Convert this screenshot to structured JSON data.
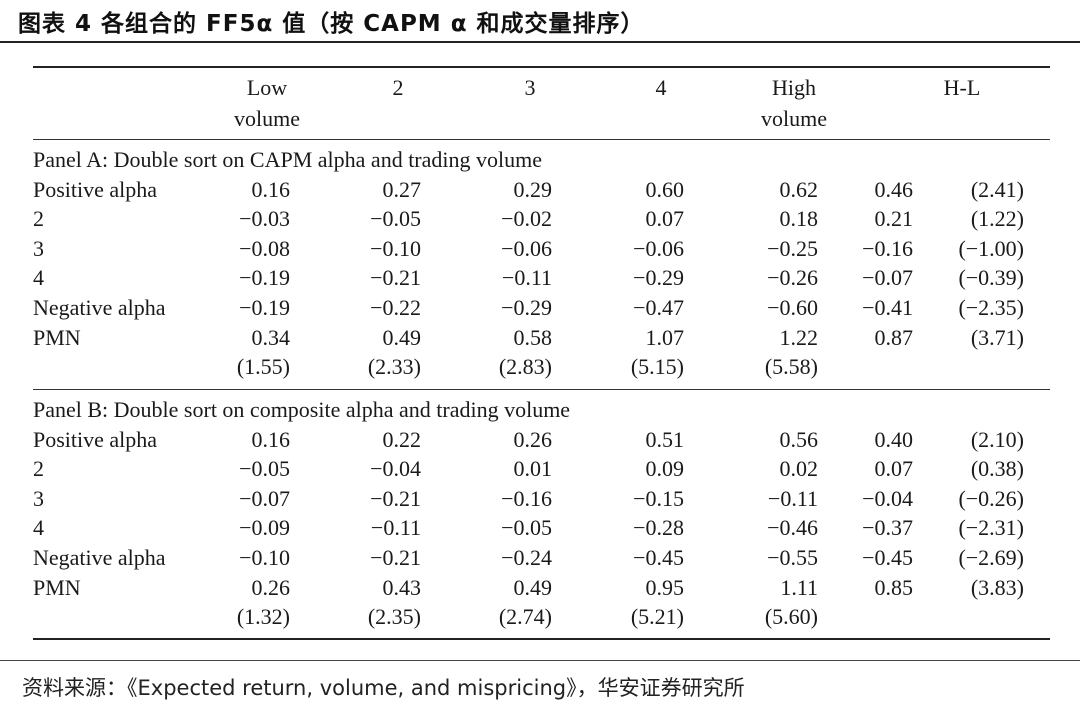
{
  "title": "图表 4 各组合的 FF5α 值（按 CAPM α 和成交量排序）",
  "columns": [
    {
      "line1": "Low",
      "line2": "volume"
    },
    {
      "line1": "2",
      "line2": ""
    },
    {
      "line1": "3",
      "line2": ""
    },
    {
      "line1": "4",
      "line2": ""
    },
    {
      "line1": "High",
      "line2": "volume"
    },
    {
      "line1": "H-L",
      "line2": ""
    }
  ],
  "panels": [
    {
      "label": "Panel A: Double sort on CAPM alpha and trading volume",
      "rows": [
        {
          "name": "Positive alpha",
          "v": [
            "0.16",
            "0.27",
            "0.29",
            "0.60",
            "0.62"
          ],
          "hl": "0.46",
          "t": "(2.41)"
        },
        {
          "name": "2",
          "v": [
            "−0.03",
            "−0.05",
            "−0.02",
            "0.07",
            "0.18"
          ],
          "hl": "0.21",
          "t": "(1.22)"
        },
        {
          "name": "3",
          "v": [
            "−0.08",
            "−0.10",
            "−0.06",
            "−0.06",
            "−0.25"
          ],
          "hl": "−0.16",
          "t": "(−1.00)"
        },
        {
          "name": "4",
          "v": [
            "−0.19",
            "−0.21",
            "−0.11",
            "−0.29",
            "−0.26"
          ],
          "hl": "−0.07",
          "t": "(−0.39)"
        },
        {
          "name": "Negative alpha",
          "v": [
            "−0.19",
            "−0.22",
            "−0.29",
            "−0.47",
            "−0.60"
          ],
          "hl": "−0.41",
          "t": "(−2.35)"
        },
        {
          "name": "PMN",
          "v": [
            "0.34",
            "0.49",
            "0.58",
            "1.07",
            "1.22"
          ],
          "hl": "0.87",
          "t": "(3.71)"
        },
        {
          "name": "",
          "v": [
            "(1.55)",
            "(2.33)",
            "(2.83)",
            "(5.15)",
            "(5.58)"
          ],
          "hl": "",
          "t": ""
        }
      ]
    },
    {
      "label": "Panel B: Double sort on composite alpha and trading volume",
      "rows": [
        {
          "name": "Positive alpha",
          "v": [
            "0.16",
            "0.22",
            "0.26",
            "0.51",
            "0.56"
          ],
          "hl": "0.40",
          "t": "(2.10)"
        },
        {
          "name": "2",
          "v": [
            "−0.05",
            "−0.04",
            "0.01",
            "0.09",
            "0.02"
          ],
          "hl": "0.07",
          "t": "(0.38)"
        },
        {
          "name": "3",
          "v": [
            "−0.07",
            "−0.21",
            "−0.16",
            "−0.15",
            "−0.11"
          ],
          "hl": "−0.04",
          "t": "(−0.26)"
        },
        {
          "name": "4",
          "v": [
            "−0.09",
            "−0.11",
            "−0.05",
            "−0.28",
            "−0.46"
          ],
          "hl": "−0.37",
          "t": "(−2.31)"
        },
        {
          "name": "Negative alpha",
          "v": [
            "−0.10",
            "−0.21",
            "−0.24",
            "−0.45",
            "−0.55"
          ],
          "hl": "−0.45",
          "t": "(−2.69)"
        },
        {
          "name": "PMN",
          "v": [
            "0.26",
            "0.43",
            "0.49",
            "0.95",
            "1.11"
          ],
          "hl": "0.85",
          "t": "(3.83)"
        },
        {
          "name": "",
          "v": [
            "(1.32)",
            "(2.35)",
            "(2.74)",
            "(5.21)",
            "(5.60)"
          ],
          "hl": "",
          "t": ""
        }
      ]
    }
  ],
  "source": "资料来源：《Expected return, volume, and mispricing》，华安证券研究所"
}
